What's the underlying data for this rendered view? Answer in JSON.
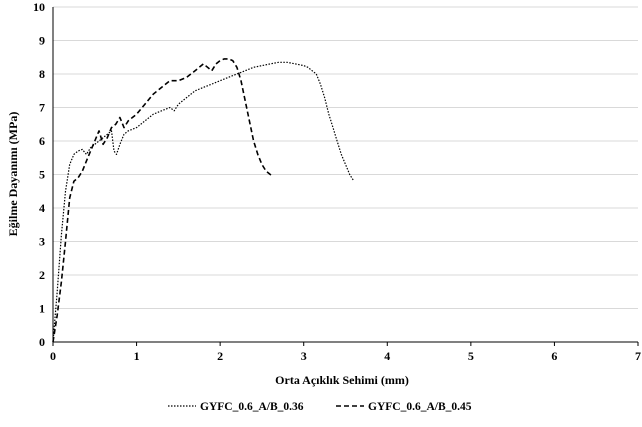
{
  "chart_data": {
    "type": "line",
    "title": "",
    "xlabel": "Orta Açıklık Sehimi (mm)",
    "ylabel": "Eğilme Dayanımı (MPa)",
    "xlim": [
      0,
      7
    ],
    "ylim": [
      0,
      10
    ],
    "xticks": [
      "0",
      "1",
      "2",
      "3",
      "4",
      "5",
      "6",
      "7"
    ],
    "yticks": [
      "0",
      "1",
      "2",
      "3",
      "4",
      "5",
      "6",
      "7",
      "8",
      "9",
      "10"
    ],
    "grid": "horizontal",
    "legend_position": "bottom",
    "series": [
      {
        "name": "GYFC_0.6_A/B_0.36",
        "style": "dotted",
        "color": "#000000",
        "x": [
          0,
          0.05,
          0.1,
          0.15,
          0.2,
          0.25,
          0.3,
          0.35,
          0.4,
          0.45,
          0.5,
          0.55,
          0.6,
          0.65,
          0.7,
          0.73,
          0.76,
          0.8,
          0.85,
          0.9,
          1.0,
          1.1,
          1.2,
          1.3,
          1.4,
          1.45,
          1.5,
          1.6,
          1.7,
          1.8,
          1.9,
          2.0,
          2.1,
          2.2,
          2.3,
          2.4,
          2.5,
          2.6,
          2.7,
          2.8,
          2.9,
          3.0,
          3.05,
          3.1,
          3.15,
          3.2,
          3.25,
          3.3,
          3.35,
          3.4,
          3.45,
          3.5,
          3.55,
          3.6
        ],
        "y": [
          0,
          1.5,
          3.2,
          4.5,
          5.3,
          5.6,
          5.7,
          5.75,
          5.6,
          5.8,
          5.9,
          6.0,
          6.1,
          6.2,
          6.3,
          5.7,
          5.6,
          5.9,
          6.2,
          6.3,
          6.4,
          6.6,
          6.8,
          6.9,
          7.0,
          6.9,
          7.1,
          7.3,
          7.5,
          7.6,
          7.7,
          7.8,
          7.9,
          8.0,
          8.1,
          8.2,
          8.25,
          8.3,
          8.35,
          8.35,
          8.3,
          8.25,
          8.2,
          8.1,
          8.0,
          7.7,
          7.3,
          6.8,
          6.4,
          6.0,
          5.6,
          5.3,
          5.0,
          4.8
        ]
      },
      {
        "name": "GYFC_0.6_A/B_0.45",
        "style": "dashed",
        "color": "#000000",
        "x": [
          0,
          0.05,
          0.1,
          0.15,
          0.2,
          0.25,
          0.3,
          0.35,
          0.4,
          0.45,
          0.5,
          0.55,
          0.6,
          0.65,
          0.7,
          0.75,
          0.8,
          0.85,
          0.9,
          0.95,
          1.0,
          1.1,
          1.2,
          1.3,
          1.4,
          1.5,
          1.6,
          1.7,
          1.8,
          1.9,
          1.95,
          2.0,
          2.05,
          2.1,
          2.15,
          2.2,
          2.25,
          2.3,
          2.35,
          2.4,
          2.45,
          2.5,
          2.55,
          2.6,
          2.63
        ],
        "y": [
          0,
          0.8,
          1.8,
          3.0,
          4.3,
          4.8,
          4.9,
          5.1,
          5.4,
          5.7,
          6.0,
          6.3,
          5.9,
          6.1,
          6.4,
          6.5,
          6.7,
          6.4,
          6.6,
          6.7,
          6.8,
          7.1,
          7.4,
          7.6,
          7.8,
          7.8,
          7.9,
          8.1,
          8.3,
          8.1,
          8.3,
          8.4,
          8.45,
          8.45,
          8.4,
          8.2,
          7.8,
          7.2,
          6.6,
          6.0,
          5.6,
          5.3,
          5.1,
          5.0,
          4.95
        ]
      }
    ]
  }
}
